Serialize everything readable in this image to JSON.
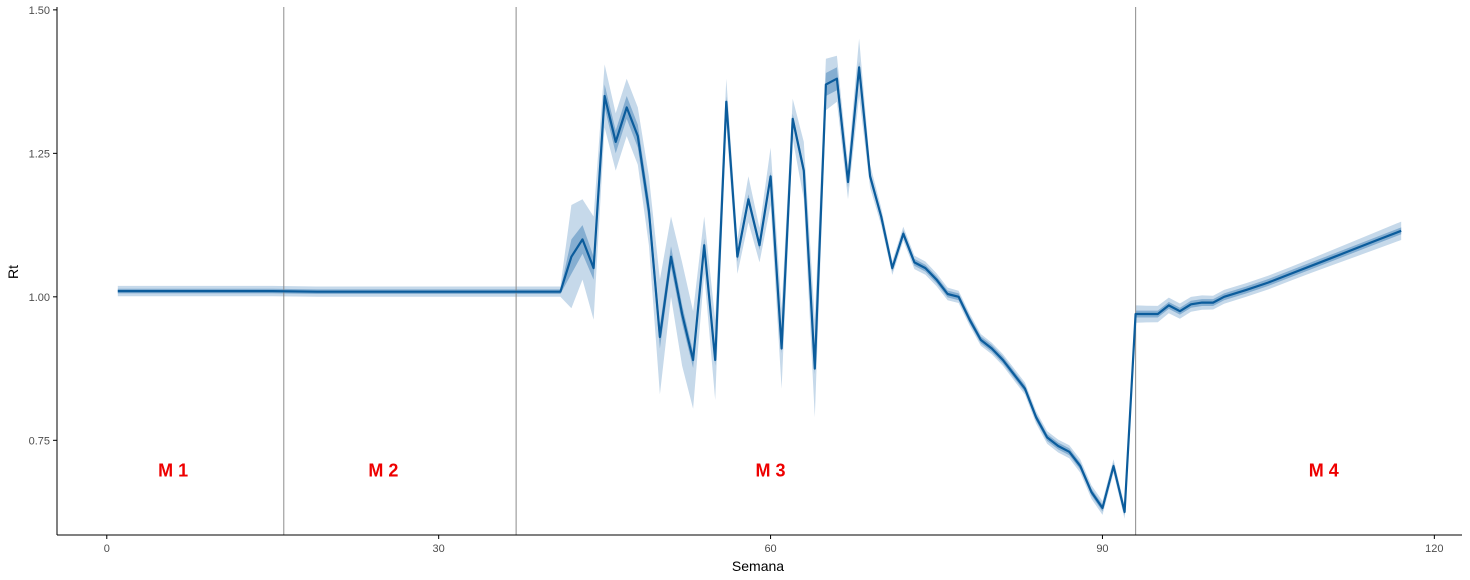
{
  "chart_data": {
    "type": "line",
    "title": "",
    "xlabel": "Semana",
    "ylabel": "Rt",
    "xlim": [
      -4.5,
      122.5
    ],
    "ylim": [
      0.585,
      1.505
    ],
    "x_ticks": [
      0,
      30,
      60,
      90,
      120
    ],
    "y_ticks": [
      0.75,
      1.0,
      1.25,
      1.5
    ],
    "x_tick_labels": [
      "0",
      "30",
      "60",
      "90",
      "120"
    ],
    "y_tick_labels": [
      "0.75",
      "1.00",
      "1.25",
      "1.50"
    ],
    "grid": false,
    "legend": "none",
    "colors": {
      "line": "#0b5c9c",
      "band_outer": "#c6d9ea",
      "band_inner": "#6f9fc8",
      "vline": "#8c8c8c",
      "label": "#ee0000",
      "axis": "#000000"
    },
    "vlines": [
      16,
      37,
      93
    ],
    "region_labels": [
      {
        "text": "M 1",
        "x": 6,
        "y": 0.695
      },
      {
        "text": "M 2",
        "x": 25,
        "y": 0.695
      },
      {
        "text": "M 3",
        "x": 60,
        "y": 0.695
      },
      {
        "text": "M 4",
        "x": 110,
        "y": 0.695
      }
    ],
    "series": [
      {
        "points": [
          [
            1,
            1.01
          ],
          [
            15,
            1.01
          ],
          [
            19,
            1.009
          ],
          [
            25,
            1.009
          ],
          [
            30,
            1.009
          ],
          [
            35,
            1.009
          ],
          [
            41,
            1.009
          ],
          [
            42,
            1.07
          ],
          [
            43,
            1.1
          ],
          [
            44,
            1.05
          ],
          [
            45,
            1.35
          ],
          [
            46,
            1.27
          ],
          [
            47,
            1.33
          ],
          [
            48,
            1.28
          ],
          [
            49,
            1.15
          ],
          [
            50,
            0.93
          ],
          [
            51,
            1.07
          ],
          [
            52,
            0.97
          ],
          [
            53,
            0.89
          ],
          [
            54,
            1.09
          ],
          [
            55,
            0.89
          ],
          [
            56,
            1.34
          ],
          [
            57,
            1.07
          ],
          [
            58,
            1.17
          ],
          [
            59,
            1.09
          ],
          [
            60,
            1.21
          ],
          [
            61,
            0.91
          ],
          [
            62,
            1.31
          ],
          [
            63,
            1.22
          ],
          [
            64,
            0.875
          ],
          [
            65,
            1.37
          ],
          [
            66,
            1.38
          ],
          [
            67,
            1.2
          ],
          [
            68,
            1.4
          ],
          [
            69,
            1.21
          ],
          [
            70,
            1.14
          ],
          [
            71,
            1.05
          ],
          [
            72,
            1.11
          ],
          [
            73,
            1.06
          ],
          [
            74,
            1.05
          ],
          [
            75,
            1.03
          ],
          [
            76,
            1.005
          ],
          [
            77,
            1.0
          ],
          [
            78,
            0.96
          ],
          [
            79,
            0.925
          ],
          [
            80,
            0.91
          ],
          [
            81,
            0.89
          ],
          [
            82,
            0.865
          ],
          [
            83,
            0.84
          ],
          [
            84,
            0.79
          ],
          [
            85,
            0.755
          ],
          [
            86,
            0.74
          ],
          [
            87,
            0.73
          ],
          [
            88,
            0.705
          ],
          [
            89,
            0.66
          ],
          [
            90,
            0.632
          ],
          [
            91,
            0.705
          ],
          [
            92,
            0.625
          ],
          [
            93,
            0.97
          ],
          [
            94,
            0.97
          ],
          [
            95,
            0.97
          ],
          [
            96,
            0.985
          ],
          [
            97,
            0.975
          ],
          [
            98,
            0.987
          ],
          [
            99,
            0.99
          ],
          [
            100,
            0.99
          ],
          [
            101,
            1.0
          ],
          [
            103,
            1.012
          ],
          [
            105,
            1.025
          ],
          [
            107,
            1.04
          ],
          [
            109,
            1.055
          ],
          [
            111,
            1.07
          ],
          [
            113,
            1.085
          ],
          [
            115,
            1.1
          ],
          [
            117,
            1.115
          ]
        ],
        "band_outer_halfwidth": [
          [
            1,
            0.009
          ],
          [
            41,
            0.009
          ],
          [
            42,
            0.09
          ],
          [
            43,
            0.07
          ],
          [
            44,
            0.09
          ],
          [
            45,
            0.055
          ],
          [
            46,
            0.05
          ],
          [
            47,
            0.05
          ],
          [
            48,
            0.05
          ],
          [
            49,
            0.06
          ],
          [
            50,
            0.1
          ],
          [
            51,
            0.07
          ],
          [
            52,
            0.09
          ],
          [
            53,
            0.085
          ],
          [
            54,
            0.05
          ],
          [
            55,
            0.07
          ],
          [
            56,
            0.04
          ],
          [
            57,
            0.03
          ],
          [
            58,
            0.04
          ],
          [
            59,
            0.03
          ],
          [
            60,
            0.05
          ],
          [
            61,
            0.07
          ],
          [
            62,
            0.035
          ],
          [
            63,
            0.05
          ],
          [
            64,
            0.085
          ],
          [
            65,
            0.045
          ],
          [
            66,
            0.04
          ],
          [
            67,
            0.03
          ],
          [
            68,
            0.05
          ],
          [
            69,
            0.02
          ],
          [
            70,
            0.015
          ],
          [
            71,
            0.012
          ],
          [
            72,
            0.012
          ],
          [
            80,
            0.01
          ],
          [
            90,
            0.012
          ],
          [
            92,
            0.012
          ],
          [
            93,
            0.015
          ],
          [
            100,
            0.012
          ],
          [
            108,
            0.012
          ],
          [
            117,
            0.016
          ]
        ],
        "band_inner_halfwidth": [
          [
            1,
            0.004
          ],
          [
            41,
            0.004
          ],
          [
            42,
            0.03
          ],
          [
            43,
            0.025
          ],
          [
            44,
            0.02
          ],
          [
            45,
            0.02
          ],
          [
            46,
            0.02
          ],
          [
            47,
            0.02
          ],
          [
            48,
            0.02
          ],
          [
            49,
            0.02
          ],
          [
            50,
            0.02
          ],
          [
            55,
            0.01
          ],
          [
            60,
            0.008
          ],
          [
            64,
            0.01
          ],
          [
            65,
            0.02
          ],
          [
            66,
            0.02
          ],
          [
            67,
            0.01
          ],
          [
            68,
            0.01
          ],
          [
            70,
            0.006
          ],
          [
            117,
            0.006
          ]
        ]
      }
    ]
  }
}
